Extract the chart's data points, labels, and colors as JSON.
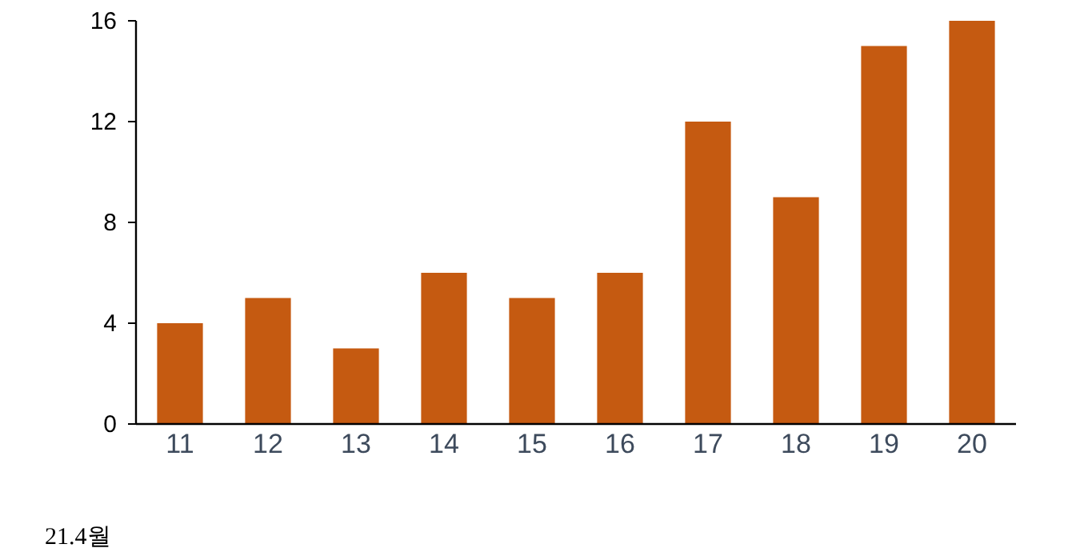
{
  "chart_data": {
    "type": "bar",
    "categories": [
      "11",
      "12",
      "13",
      "14",
      "15",
      "16",
      "17",
      "18",
      "19",
      "20"
    ],
    "values": [
      4,
      5,
      3,
      6,
      5,
      6,
      12,
      9,
      15,
      16
    ],
    "color": "#c55a11",
    "ylim": [
      0,
      16
    ],
    "yticks": [
      0,
      4,
      8,
      12,
      16
    ],
    "grid": false,
    "annotations": [
      "21.4월"
    ]
  }
}
